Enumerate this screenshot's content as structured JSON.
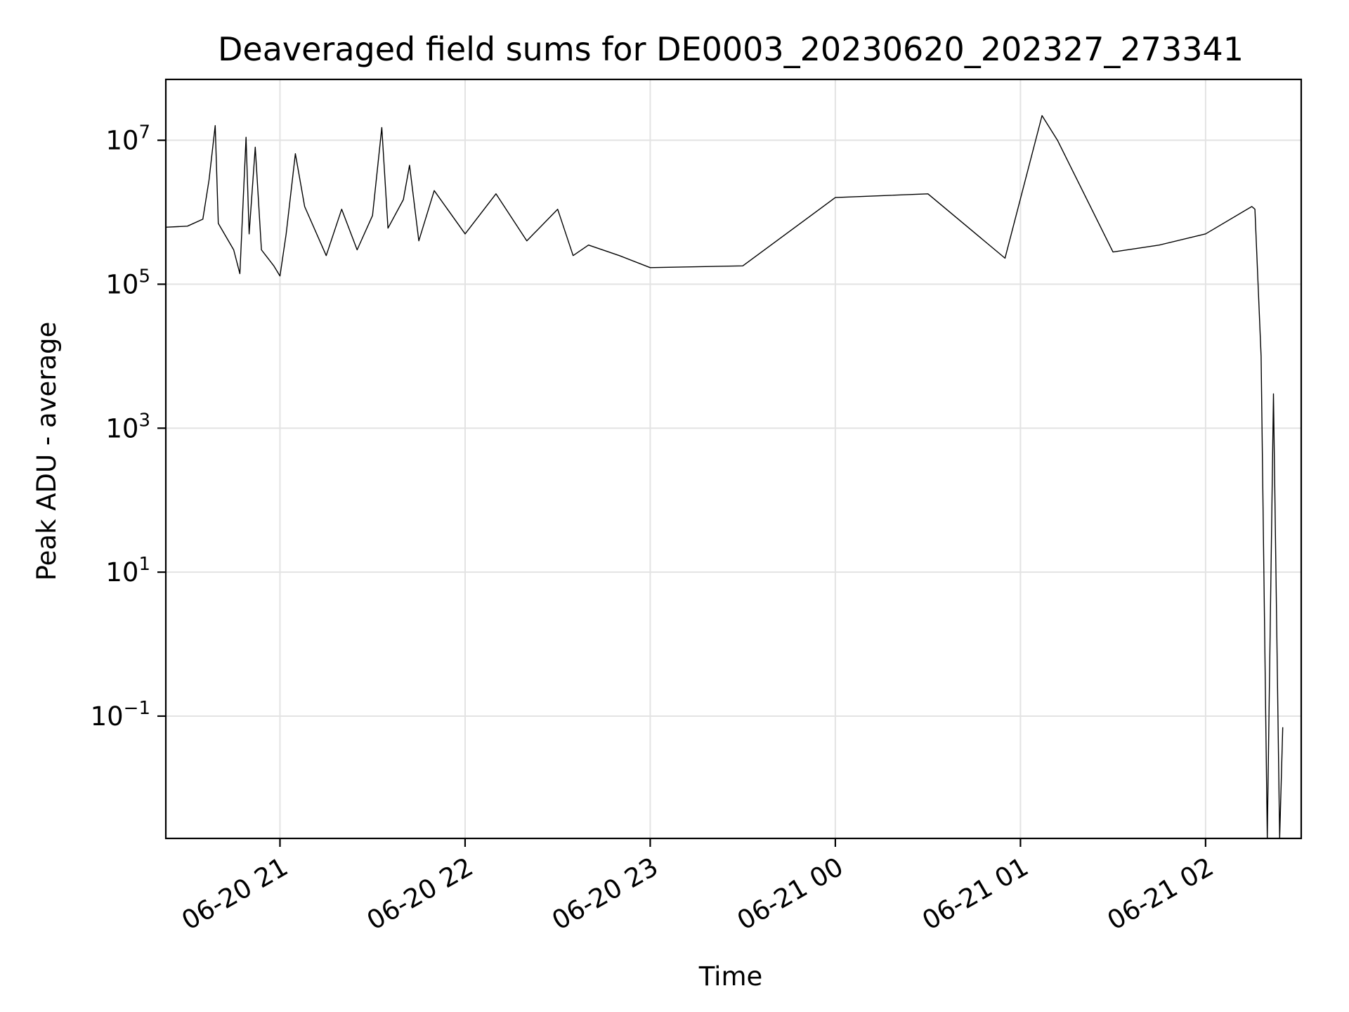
{
  "chart_data": {
    "type": "line",
    "title": "Deaveraged field sums for DE0003_20230620_202327_273341",
    "xlabel": "Time",
    "ylabel": "Peak ADU - average",
    "yscale": "log",
    "xlim": [
      "2023-06-20 20:23",
      "2023-06-21 02:31"
    ],
    "ylim": [
      0.002,
      70000000
    ],
    "grid": true,
    "x_ticks": [
      {
        "t": "2023-06-20 21:00",
        "label": "06-20 21"
      },
      {
        "t": "2023-06-20 22:00",
        "label": "06-20 22"
      },
      {
        "t": "2023-06-20 23:00",
        "label": "06-20 23"
      },
      {
        "t": "2023-06-21 00:00",
        "label": "06-21 00"
      },
      {
        "t": "2023-06-21 01:00",
        "label": "06-21 01"
      },
      {
        "t": "2023-06-21 02:00",
        "label": "06-21 02"
      }
    ],
    "y_ticks": [
      {
        "value": 10000000,
        "base": "10",
        "exp": "7"
      },
      {
        "value": 100000,
        "base": "10",
        "exp": "5"
      },
      {
        "value": 1000,
        "base": "10",
        "exp": "3"
      },
      {
        "value": 10,
        "base": "10",
        "exp": "1"
      },
      {
        "value": 0.1,
        "base": "10",
        "exp": "−1"
      }
    ],
    "series": [
      {
        "color": "#000000",
        "points": [
          [
            "2023-06-20 20:23",
            620000
          ],
          [
            "2023-06-20 20:30",
            640000
          ],
          [
            "2023-06-20 20:35",
            800000
          ],
          [
            "2023-06-20 20:37",
            2800000
          ],
          [
            "2023-06-20 20:39",
            16000000
          ],
          [
            "2023-06-20 20:40",
            700000
          ],
          [
            "2023-06-20 20:45",
            300000
          ],
          [
            "2023-06-20 20:47",
            140000
          ],
          [
            "2023-06-20 20:49",
            11000000
          ],
          [
            "2023-06-20 20:50",
            500000
          ],
          [
            "2023-06-20 20:52",
            8000000
          ],
          [
            "2023-06-20 20:54",
            300000
          ],
          [
            "2023-06-20 20:58",
            180000
          ],
          [
            "2023-06-20 21:00",
            130000
          ],
          [
            "2023-06-20 21:02",
            500000
          ],
          [
            "2023-06-20 21:05",
            6500000
          ],
          [
            "2023-06-20 21:08",
            1200000
          ],
          [
            "2023-06-20 21:15",
            250000
          ],
          [
            "2023-06-20 21:20",
            1100000
          ],
          [
            "2023-06-20 21:25",
            300000
          ],
          [
            "2023-06-20 21:30",
            900000
          ],
          [
            "2023-06-20 21:33",
            15000000
          ],
          [
            "2023-06-20 21:35",
            600000
          ],
          [
            "2023-06-20 21:40",
            1500000
          ],
          [
            "2023-06-20 21:42",
            4500000
          ],
          [
            "2023-06-20 21:45",
            400000
          ],
          [
            "2023-06-20 21:50",
            2000000
          ],
          [
            "2023-06-20 22:00",
            500000
          ],
          [
            "2023-06-20 22:10",
            1800000
          ],
          [
            "2023-06-20 22:20",
            400000
          ],
          [
            "2023-06-20 22:30",
            1100000
          ],
          [
            "2023-06-20 22:35",
            250000
          ],
          [
            "2023-06-20 22:40",
            350000
          ],
          [
            "2023-06-20 22:50",
            250000
          ],
          [
            "2023-06-20 23:00",
            170000
          ],
          [
            "2023-06-20 23:30",
            180000
          ],
          [
            "2023-06-21 00:00",
            1600000
          ],
          [
            "2023-06-21 00:30",
            1800000
          ],
          [
            "2023-06-21 00:55",
            230000
          ],
          [
            "2023-06-21 01:07",
            22000000
          ],
          [
            "2023-06-21 01:12",
            10000000
          ],
          [
            "2023-06-21 01:30",
            280000
          ],
          [
            "2023-06-21 01:45",
            350000
          ],
          [
            "2023-06-21 02:00",
            500000
          ],
          [
            "2023-06-21 02:15",
            1200000
          ],
          [
            "2023-06-21 02:16",
            1100000
          ],
          [
            "2023-06-21 02:18",
            10000
          ],
          [
            "2023-06-21 02:20",
            0.002
          ],
          [
            "2023-06-21 02:22",
            3000
          ],
          [
            "2023-06-21 02:24",
            0.002
          ],
          [
            "2023-06-21 02:25",
            0.07
          ]
        ]
      }
    ]
  }
}
